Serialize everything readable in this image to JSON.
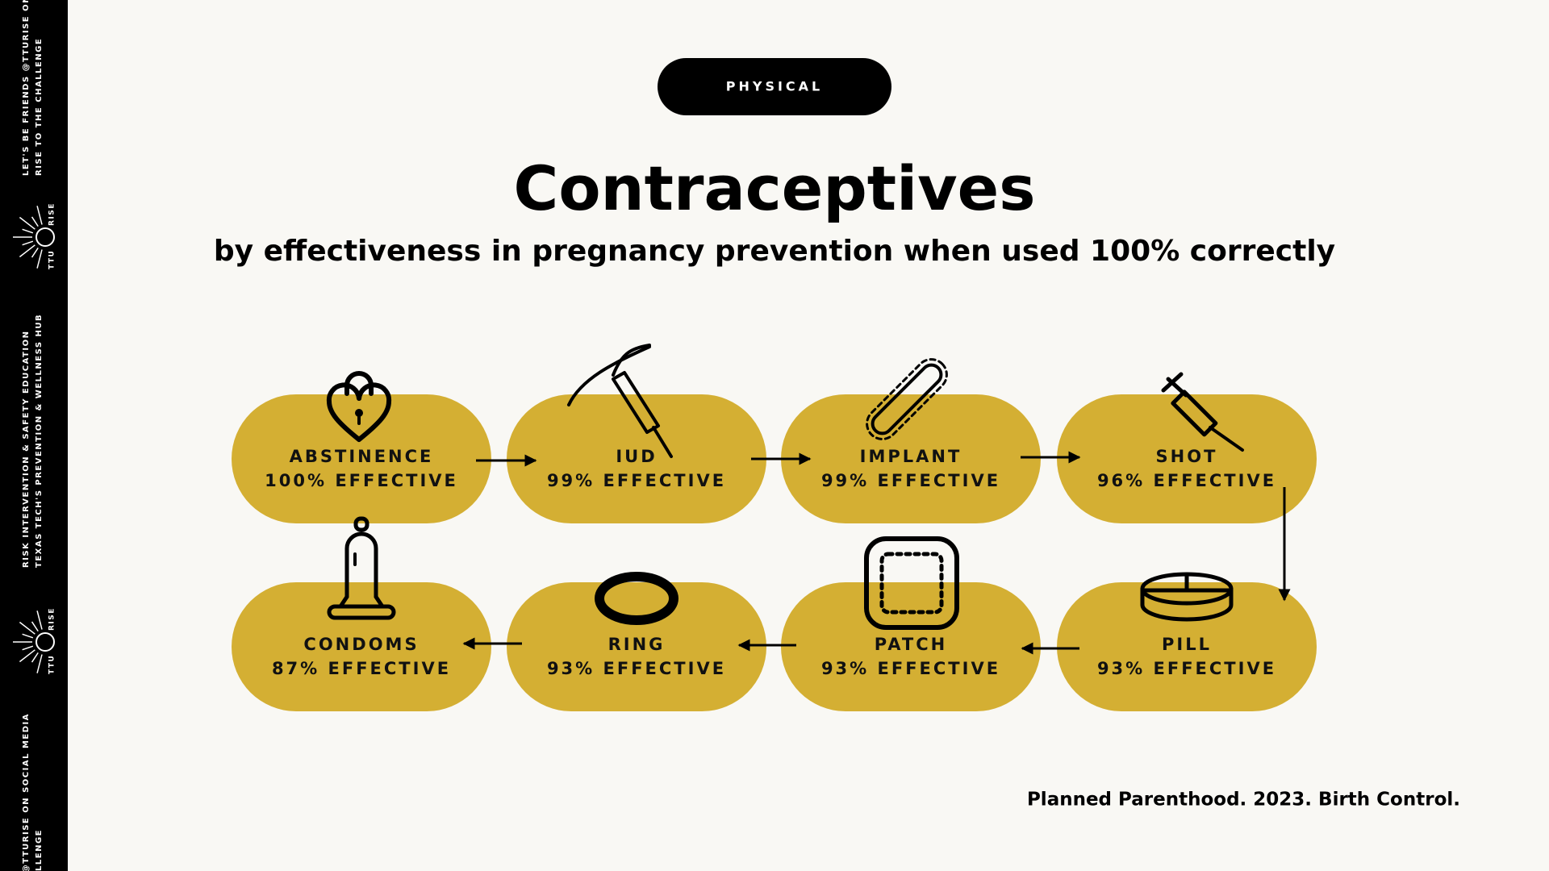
{
  "badge": "PHYSICAL",
  "title": "Contraceptives",
  "subtitle": "by effectiveness in pregnancy prevention when used 100% correctly",
  "nodes": [
    {
      "label": "ABSTINENCE",
      "effectiveness": "100% EFFECTIVE"
    },
    {
      "label": "IUD",
      "effectiveness": "99% EFFECTIVE"
    },
    {
      "label": "IMPLANT",
      "effectiveness": "99% EFFECTIVE"
    },
    {
      "label": "SHOT",
      "effectiveness": "96% EFFECTIVE"
    },
    {
      "label": "PILL",
      "effectiveness": "93% EFFECTIVE"
    },
    {
      "label": "PATCH",
      "effectiveness": "93% EFFECTIVE"
    },
    {
      "label": "RING",
      "effectiveness": "93% EFFECTIVE"
    },
    {
      "label": "CONDOMS",
      "effectiveness": "87% EFFECTIVE"
    }
  ],
  "citation": "Planned Parenthood. 2023. Birth Control.",
  "sidebar": {
    "top": [
      "LET'S BE FRIENDS @TTURISE ON",
      "RISE TO THE CHALLENGE"
    ],
    "middle": [
      "RISK INTERVENTION & SAFETY EDUCATION",
      "TEXAS TECH'S PREVENTION & WELLNESS HUB"
    ],
    "bottom": [
      "@TTURISE ON SOCIAL MEDIA",
      "LLENGE"
    ],
    "logo": [
      "TTU",
      "RISE"
    ]
  }
}
